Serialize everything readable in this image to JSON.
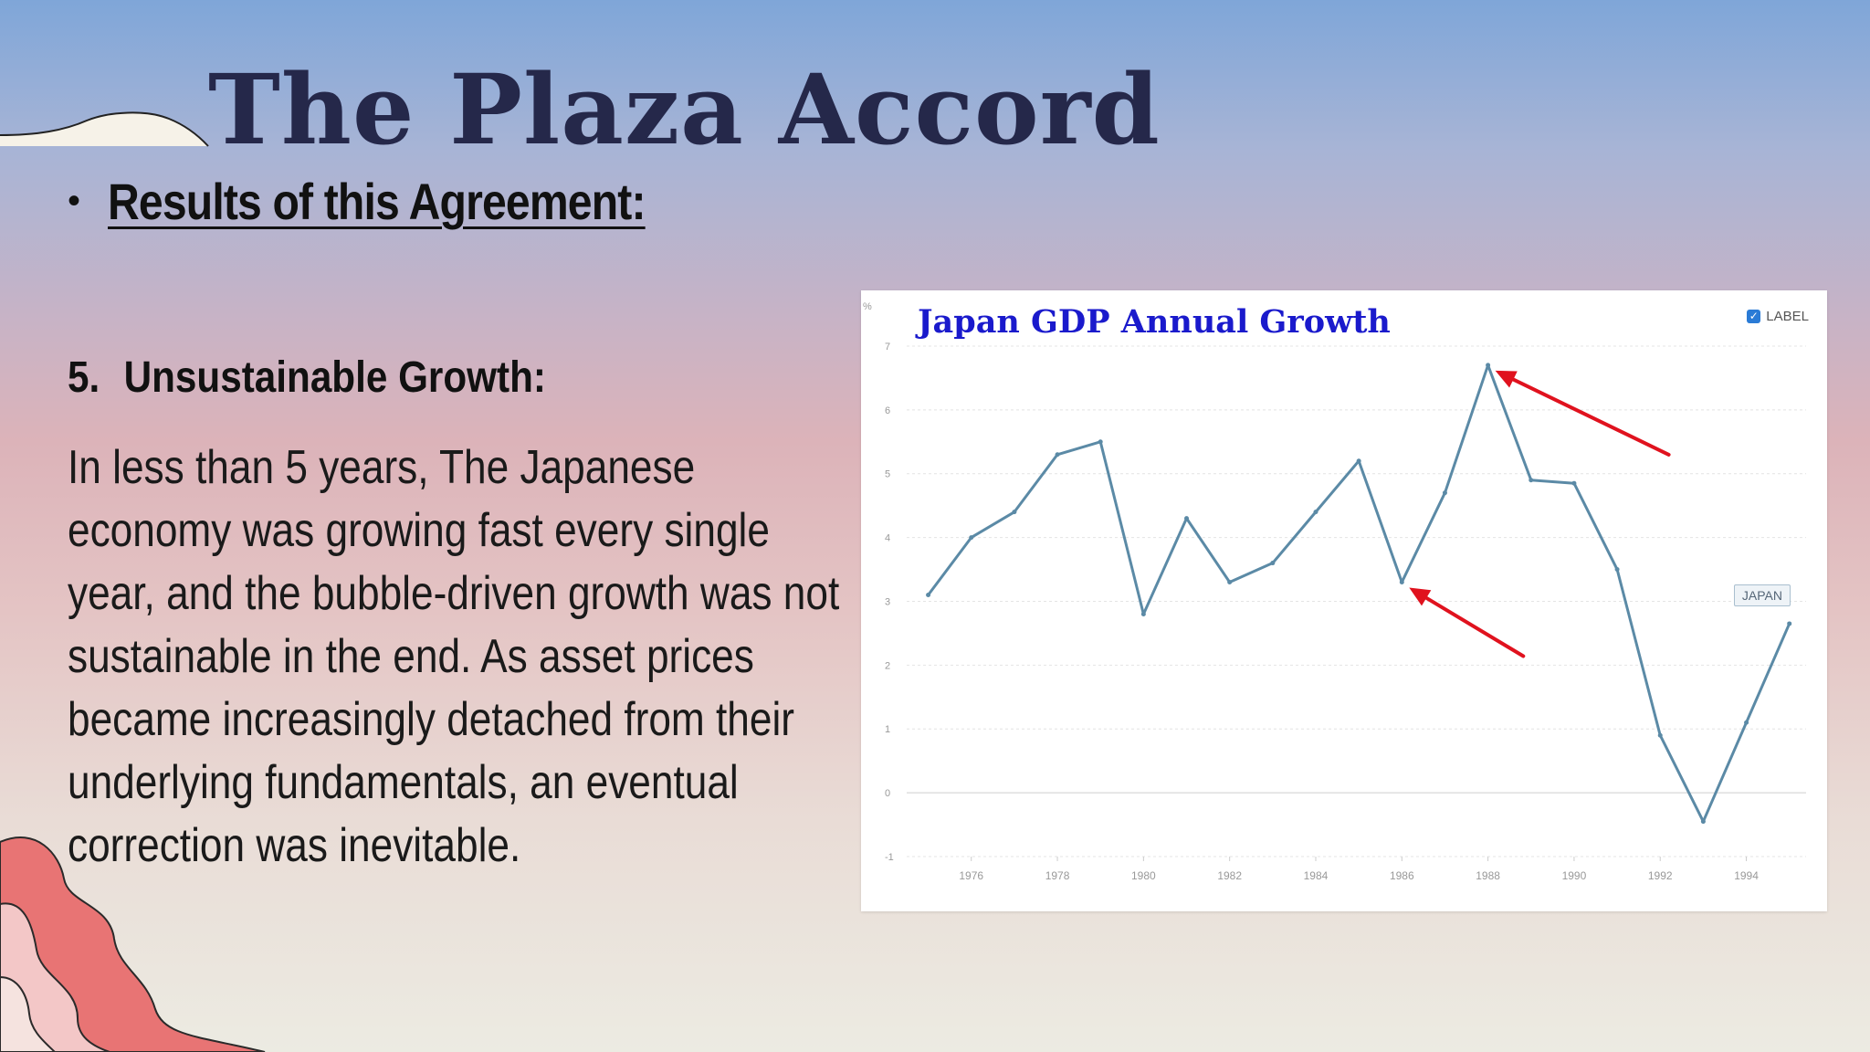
{
  "slide": {
    "title": "The Plaza Accord",
    "bullet": "Results of this Agreement:",
    "section_number": "5.",
    "section_heading": "Unsustainable Growth:",
    "body": "In less than 5 years, The Japanese economy was growing fast every single year, and the bubble-driven growth was not sustainable in the end. As asset prices became increasingly detached from their underlying fundamentals, an eventual correction was inevitable."
  },
  "chart_data": {
    "type": "line",
    "title": "Japan GDP Annual Growth",
    "unit": "%",
    "legend_label": "LABEL",
    "series_tag": "JAPAN",
    "x": [
      1975,
      1976,
      1977,
      1978,
      1979,
      1980,
      1981,
      1982,
      1983,
      1984,
      1985,
      1986,
      1987,
      1988,
      1989,
      1990,
      1991,
      1992,
      1993,
      1994,
      1995
    ],
    "series": [
      {
        "name": "JAPAN",
        "values": [
          3.1,
          4.0,
          4.4,
          5.3,
          5.5,
          2.8,
          4.3,
          3.3,
          3.6,
          4.4,
          5.2,
          3.3,
          4.7,
          6.7,
          4.9,
          4.85,
          3.5,
          0.9,
          -0.45,
          1.1,
          2.65
        ]
      }
    ],
    "x_ticks": [
      "1976",
      "1978",
      "1980",
      "1982",
      "1984",
      "1986",
      "1988",
      "1990",
      "1992",
      "1994"
    ],
    "y_ticks": [
      -1,
      0,
      1,
      2,
      3,
      4,
      5,
      6,
      7
    ],
    "xlim": [
      1974.5,
      1995.6
    ],
    "ylim": [
      -1,
      7.3
    ],
    "grid": true,
    "legend_position": "top-right",
    "line_color": "#5b8aa6",
    "annotations": [
      {
        "type": "arrow",
        "color": "#e0121e",
        "points_to": {
          "x": 1986,
          "y": 3.3
        }
      },
      {
        "type": "arrow",
        "color": "#e0121e",
        "points_to": {
          "x": 1988,
          "y": 6.7
        }
      }
    ]
  },
  "colors": {
    "title": "#25284a",
    "chart_title": "#1a1acc",
    "accent_wave": "#e87474"
  }
}
